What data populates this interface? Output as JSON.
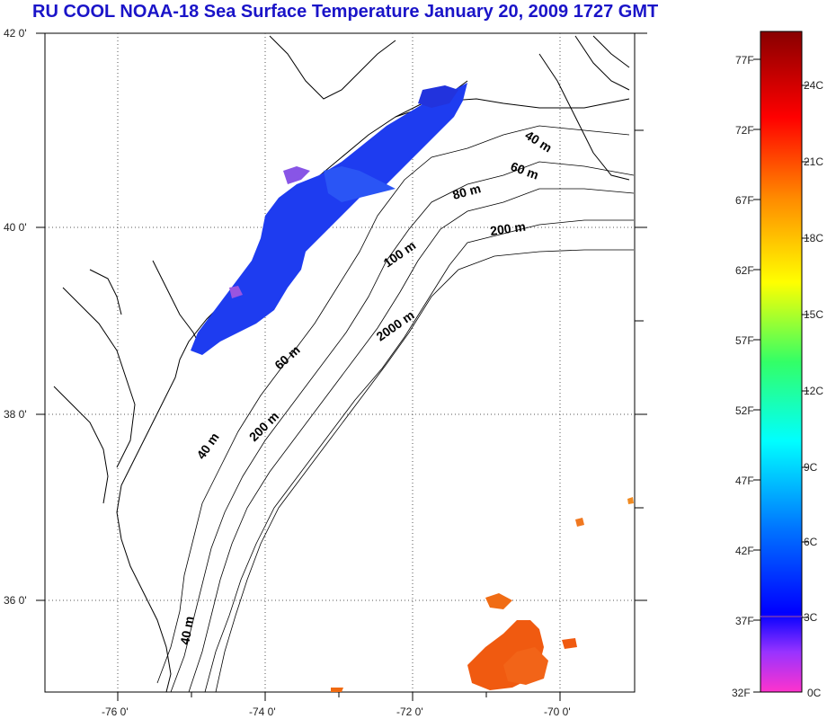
{
  "title": "RU COOL  NOAA-18 Sea Surface Temperature January 20, 2009 1727 GMT",
  "axes": {
    "lat_labels": [
      "42 0'",
      "40 0'",
      "38 0'",
      "36 0'"
    ],
    "lon_labels": [
      "-76 0'",
      "-74 0'",
      "-72 0'",
      "-70 0'"
    ]
  },
  "isobaths": [
    {
      "label": "40 m"
    },
    {
      "label": "60 m"
    },
    {
      "label": "80 m"
    },
    {
      "label": "200 m"
    },
    {
      "label": "100 m"
    },
    {
      "label": "2000 m"
    },
    {
      "label": "60 m"
    },
    {
      "label": "40 m"
    },
    {
      "label": "200 m"
    },
    {
      "label": "40 m"
    }
  ],
  "colorbar": {
    "fahrenheit": [
      "77F",
      "72F",
      "67F",
      "62F",
      "57F",
      "52F",
      "47F",
      "42F",
      "37F",
      "32F"
    ],
    "celsius": [
      "24C",
      "21C",
      "18C",
      "15C",
      "12C",
      "9C",
      "6C",
      "3C",
      "0C"
    ]
  },
  "colors": {
    "title": "#1a14c8",
    "cold_water": "#1e3cf0",
    "warm_water": "#f05a10"
  }
}
